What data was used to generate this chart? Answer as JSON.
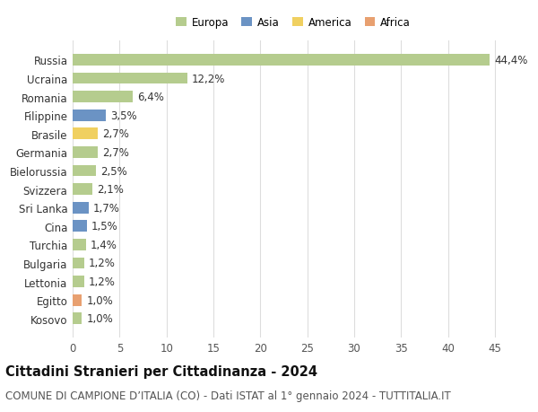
{
  "categories": [
    "Russia",
    "Ucraina",
    "Romania",
    "Filippine",
    "Brasile",
    "Germania",
    "Bielorussia",
    "Svizzera",
    "Sri Lanka",
    "Cina",
    "Turchia",
    "Bulgaria",
    "Lettonia",
    "Egitto",
    "Kosovo"
  ],
  "values": [
    44.4,
    12.2,
    6.4,
    3.5,
    2.7,
    2.7,
    2.5,
    2.1,
    1.7,
    1.5,
    1.4,
    1.2,
    1.2,
    1.0,
    1.0
  ],
  "labels": [
    "44,4%",
    "12,2%",
    "6,4%",
    "3,5%",
    "2,7%",
    "2,7%",
    "2,5%",
    "2,1%",
    "1,7%",
    "1,5%",
    "1,4%",
    "1,2%",
    "1,2%",
    "1,0%",
    "1,0%"
  ],
  "continents": [
    "Europa",
    "Europa",
    "Europa",
    "Asia",
    "America",
    "Europa",
    "Europa",
    "Europa",
    "Asia",
    "Asia",
    "Europa",
    "Europa",
    "Europa",
    "Africa",
    "Europa"
  ],
  "continent_colors": {
    "Europa": "#b5cc8e",
    "Asia": "#6b93c4",
    "America": "#f0d060",
    "Africa": "#e8a070"
  },
  "legend_items": [
    {
      "label": "Europa",
      "color": "#b5cc8e"
    },
    {
      "label": "Asia",
      "color": "#6b93c4"
    },
    {
      "label": "America",
      "color": "#f0d060"
    },
    {
      "label": "Africa",
      "color": "#e8a070"
    }
  ],
  "title": "Cittadini Stranieri per Cittadinanza - 2024",
  "subtitle": "COMUNE DI CAMPIONE D’ITALIA (CO) - Dati ISTAT al 1° gennaio 2024 - TUTTITALIA.IT",
  "xlim": [
    0,
    47
  ],
  "xticks": [
    0,
    5,
    10,
    15,
    20,
    25,
    30,
    35,
    40,
    45
  ],
  "background_color": "#ffffff",
  "grid_color": "#dddddd",
  "bar_height": 0.62,
  "label_fontsize": 8.5,
  "tick_fontsize": 8.5,
  "title_fontsize": 10.5,
  "subtitle_fontsize": 8.5
}
